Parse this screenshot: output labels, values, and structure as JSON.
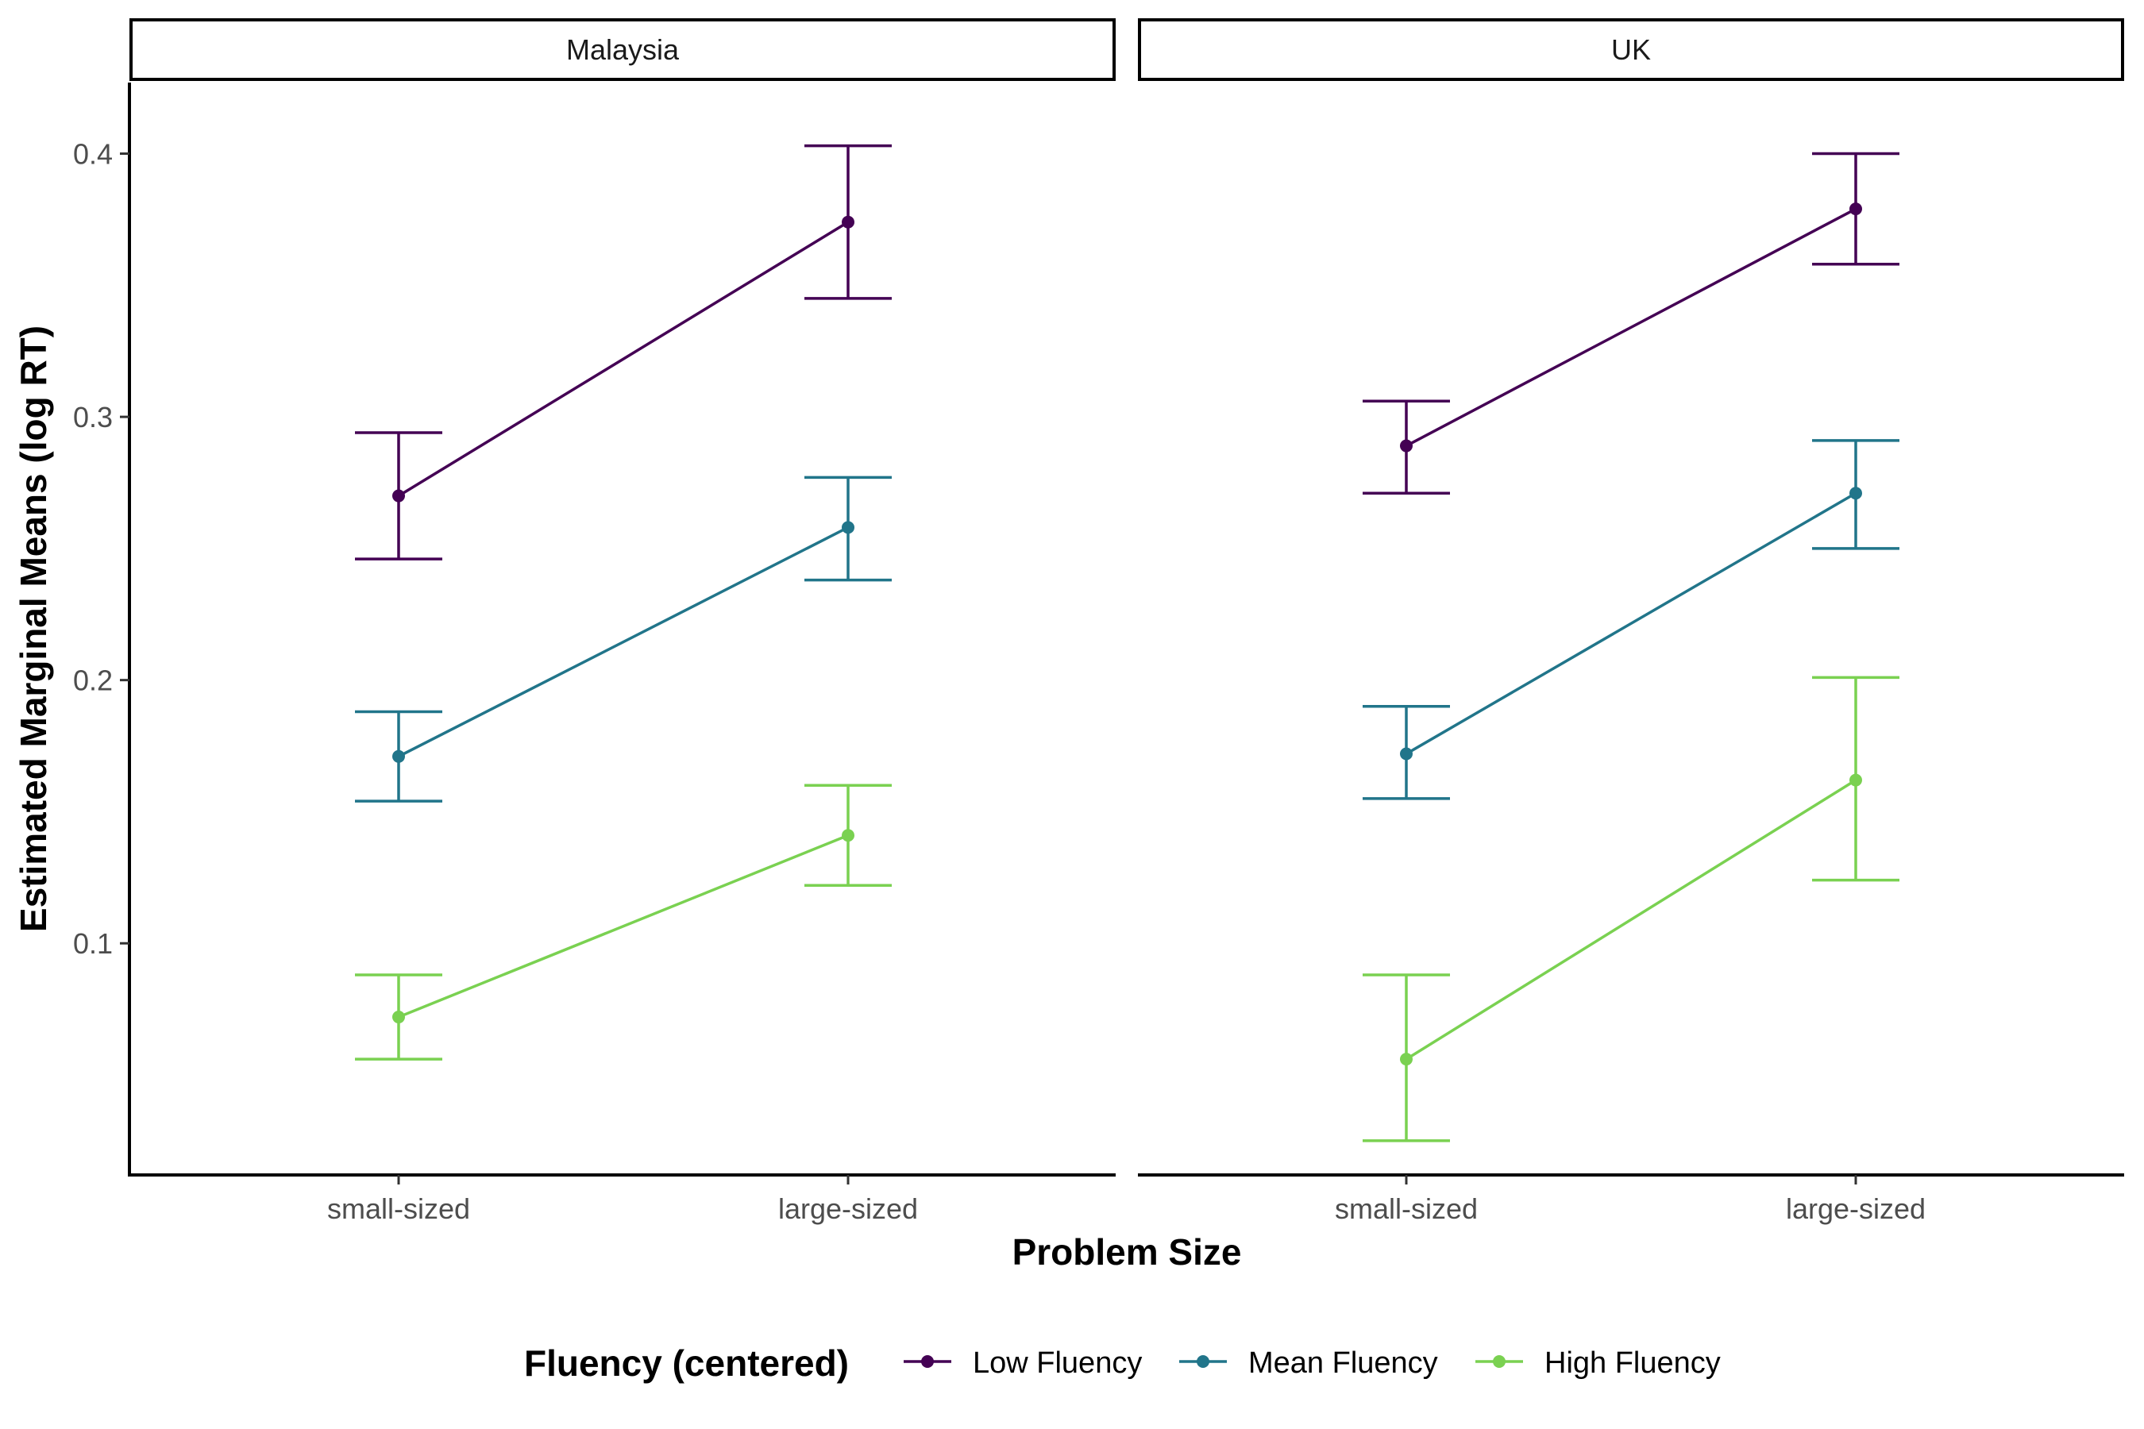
{
  "chart_data": {
    "type": "line",
    "facets": [
      "Malaysia",
      "UK"
    ],
    "xlabel": "Problem Size",
    "ylabel": "Estimated Marginal Means (log RT)",
    "categories": [
      "small-sized",
      "large-sized"
    ],
    "y_ticks": [
      "0.1",
      "0.2",
      "0.3",
      "0.4"
    ],
    "ylim": [
      0.012,
      0.427
    ],
    "grid": false,
    "legend": {
      "title": "Fluency (centered)",
      "placement": "bottom"
    },
    "series": [
      {
        "name": "Low Fluency",
        "color": "#440154",
        "panels": [
          {
            "facet": "Malaysia",
            "values": [
              0.27,
              0.374
            ],
            "lower": [
              0.246,
              0.345
            ],
            "upper": [
              0.294,
              0.403
            ]
          },
          {
            "facet": "UK",
            "values": [
              0.289,
              0.379
            ],
            "lower": [
              0.271,
              0.358
            ],
            "upper": [
              0.306,
              0.4
            ]
          }
        ]
      },
      {
        "name": "Mean Fluency",
        "color": "#21758A",
        "panels": [
          {
            "facet": "Malaysia",
            "values": [
              0.171,
              0.258
            ],
            "lower": [
              0.154,
              0.238
            ],
            "upper": [
              0.188,
              0.277
            ]
          },
          {
            "facet": "UK",
            "values": [
              0.172,
              0.271
            ],
            "lower": [
              0.155,
              0.25
            ],
            "upper": [
              0.19,
              0.291
            ]
          }
        ]
      },
      {
        "name": "High Fluency",
        "color": "#7AD151",
        "panels": [
          {
            "facet": "Malaysia",
            "values": [
              0.072,
              0.141
            ],
            "lower": [
              0.056,
              0.122
            ],
            "upper": [
              0.088,
              0.16
            ]
          },
          {
            "facet": "UK",
            "values": [
              0.056,
              0.162
            ],
            "lower": [
              0.025,
              0.124
            ],
            "upper": [
              0.088,
              0.201
            ]
          }
        ]
      }
    ]
  }
}
